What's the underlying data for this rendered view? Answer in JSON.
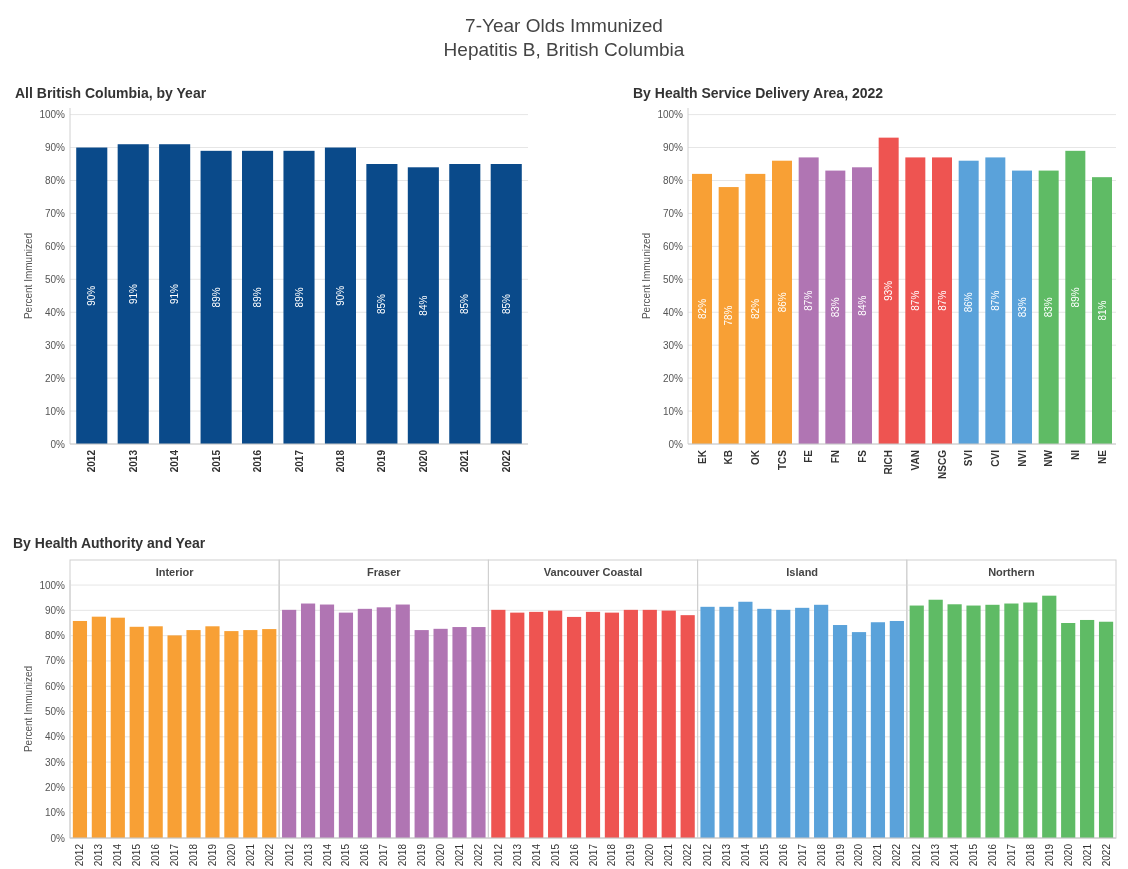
{
  "chart_data": [
    {
      "type": "bar",
      "annotations": [
        "7-Year Olds Immunized",
        "Hepatitis B, British Columbia"
      ],
      "title": "All British Columbia, by Year",
      "ylabel": "Percent Immunized",
      "categories": [
        "2012",
        "2013",
        "2014",
        "2015",
        "2016",
        "2017",
        "2018",
        "2019",
        "2020",
        "2021",
        "2022"
      ],
      "values": [
        90,
        91,
        91,
        89,
        89,
        89,
        90,
        85,
        84,
        85,
        85
      ],
      "value_labels": [
        "90%",
        "91%",
        "91%",
        "89%",
        "89%",
        "89%",
        "90%",
        "85%",
        "84%",
        "85%",
        "85%"
      ],
      "color": "#0a4a8a",
      "ylim": [
        0,
        102
      ],
      "yticks": [
        {
          "value": 0,
          "label": "0%"
        },
        {
          "value": 10,
          "label": "10%"
        },
        {
          "value": 20,
          "label": "20%"
        },
        {
          "value": 30,
          "label": "30%"
        },
        {
          "value": 40,
          "label": "40%"
        },
        {
          "value": 50,
          "label": "50%"
        },
        {
          "value": 60,
          "label": "60%"
        },
        {
          "value": 70,
          "label": "70%"
        },
        {
          "value": 80,
          "label": "80%"
        },
        {
          "value": 90,
          "label": "90%"
        },
        {
          "value": 100,
          "label": "100%"
        }
      ],
      "grid": "y"
    },
    {
      "type": "bar",
      "title": "By Health Service Delivery Area, 2022",
      "ylabel": "Percent Immunized",
      "categories": [
        "EK",
        "KB",
        "OK",
        "TCS",
        "FE",
        "FN",
        "FS",
        "RICH",
        "VAN",
        "NSCG",
        "SVI",
        "CVI",
        "NVI",
        "NW",
        "NI",
        "NE"
      ],
      "values": [
        82,
        78,
        82,
        86,
        87,
        83,
        84,
        93,
        87,
        87,
        86,
        87,
        83,
        83,
        89,
        81
      ],
      "value_labels": [
        "82%",
        "78%",
        "82%",
        "86%",
        "87%",
        "83%",
        "84%",
        "93%",
        "87%",
        "87%",
        "86%",
        "87%",
        "83%",
        "83%",
        "89%",
        "81%"
      ],
      "colors": [
        "#f8a035",
        "#f8a035",
        "#f8a035",
        "#f8a035",
        "#b075b3",
        "#b075b3",
        "#b075b3",
        "#ee5451",
        "#ee5451",
        "#ee5451",
        "#5aa2da",
        "#5aa2da",
        "#5aa2da",
        "#5fbb65",
        "#5fbb65",
        "#5fbb65"
      ],
      "ylim": [
        0,
        102
      ],
      "yticks": [
        {
          "value": 0,
          "label": "0%"
        },
        {
          "value": 10,
          "label": "10%"
        },
        {
          "value": 20,
          "label": "20%"
        },
        {
          "value": 30,
          "label": "30%"
        },
        {
          "value": 40,
          "label": "40%"
        },
        {
          "value": 50,
          "label": "50%"
        },
        {
          "value": 60,
          "label": "60%"
        },
        {
          "value": 70,
          "label": "70%"
        },
        {
          "value": 80,
          "label": "80%"
        },
        {
          "value": 90,
          "label": "90%"
        },
        {
          "value": 100,
          "label": "100%"
        }
      ],
      "grid": "y"
    },
    {
      "type": "bar",
      "title": "By Health Authority and Year",
      "subtitle": "Interior",
      "ylabel": "Percent Immunized",
      "categories": [
        "2012",
        "2013",
        "2014",
        "2015",
        "2016",
        "2017",
        "2018",
        "2019",
        "2020",
        "2021",
        "2022"
      ],
      "values": [
        85.8,
        87.5,
        87.1,
        83.5,
        83.7,
        80.1,
        82.2,
        83.7,
        81.8,
        82.2,
        82.6
      ],
      "color": "#f8a035",
      "ylim": [
        0,
        102
      ],
      "yticks": [
        {
          "value": 0,
          "label": "0%"
        },
        {
          "value": 10,
          "label": "10%"
        },
        {
          "value": 20,
          "label": "20%"
        },
        {
          "value": 30,
          "label": "30%"
        },
        {
          "value": 40,
          "label": "40%"
        },
        {
          "value": 50,
          "label": "50%"
        },
        {
          "value": 60,
          "label": "60%"
        },
        {
          "value": 70,
          "label": "70%"
        },
        {
          "value": 80,
          "label": "80%"
        },
        {
          "value": 90,
          "label": "90%"
        },
        {
          "value": 100,
          "label": "100%"
        }
      ],
      "grid": "y"
    },
    {
      "type": "bar",
      "subtitle": "Fraser",
      "categories": [
        "2012",
        "2013",
        "2014",
        "2015",
        "2016",
        "2017",
        "2018",
        "2019",
        "2020",
        "2021",
        "2022"
      ],
      "values": [
        90.2,
        92.7,
        92.3,
        89.1,
        90.6,
        91.2,
        92.3,
        82.2,
        82.7,
        83.4,
        83.4
      ],
      "color": "#b075b3",
      "ylim": [
        0,
        102
      ],
      "yticks": [
        0,
        10,
        20,
        30,
        40,
        50,
        60,
        70,
        80,
        90,
        100
      ],
      "grid": "y",
      "tick_labels": "x"
    },
    {
      "type": "bar",
      "subtitle": "Vancouver Coastal",
      "categories": [
        "2012",
        "2013",
        "2014",
        "2015",
        "2016",
        "2017",
        "2018",
        "2019",
        "2020",
        "2021",
        "2022"
      ],
      "values": [
        90.2,
        89.1,
        89.4,
        89.9,
        87.4,
        89.4,
        89.1,
        90.2,
        90.2,
        89.9,
        88.1
      ],
      "color": "#ee5451",
      "ylim": [
        0,
        102
      ],
      "yticks": [
        0,
        10,
        20,
        30,
        40,
        50,
        60,
        70,
        80,
        90,
        100
      ],
      "grid": "y",
      "tick_labels": "x"
    },
    {
      "type": "bar",
      "subtitle": "Island",
      "categories": [
        "2012",
        "2013",
        "2014",
        "2015",
        "2016",
        "2017",
        "2018",
        "2019",
        "2020",
        "2021",
        "2022"
      ],
      "values": [
        91.4,
        91.4,
        93.4,
        90.6,
        90.2,
        91.0,
        92.2,
        84.2,
        81.4,
        85.3,
        85.8
      ],
      "color": "#5aa2da",
      "ylim": [
        0,
        102
      ],
      "yticks": [
        0,
        10,
        20,
        30,
        40,
        50,
        60,
        70,
        80,
        90,
        100
      ],
      "grid": "y",
      "tick_labels": "x"
    },
    {
      "type": "bar",
      "subtitle": "Northern",
      "categories": [
        "2012",
        "2013",
        "2014",
        "2015",
        "2016",
        "2017",
        "2018",
        "2019",
        "2020",
        "2021",
        "2022"
      ],
      "values": [
        91.9,
        94.2,
        92.4,
        91.9,
        92.2,
        92.7,
        93.1,
        95.8,
        85.0,
        86.2,
        85.5
      ],
      "color": "#5fbb65",
      "ylim": [
        0,
        102
      ],
      "yticks": [
        0,
        10,
        20,
        30,
        40,
        50,
        60,
        70,
        80,
        90,
        100
      ],
      "grid": "y",
      "tick_labels": "x"
    }
  ]
}
